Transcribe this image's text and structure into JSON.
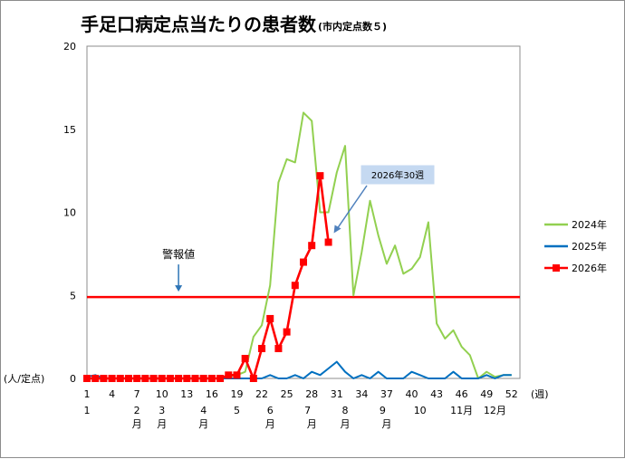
{
  "chart_data": {
    "type": "line",
    "title": "手足口病定点当たりの患者数",
    "subtitle": "(市内定点数５)",
    "ylabel": "(人/定点)",
    "xlabel": "(週)",
    "ylim": [
      0,
      20
    ],
    "yticks": [
      "0",
      "5",
      "10",
      "15",
      "20"
    ],
    "xlim": [
      1,
      53
    ],
    "xticks": [
      "1",
      "4",
      "7",
      "10",
      "13",
      "16",
      "19",
      "22",
      "25",
      "28",
      "31",
      "34",
      "37",
      "40",
      "43",
      "46",
      "49",
      "52"
    ],
    "month_labels": [
      {
        "week": 1,
        "text": "1"
      },
      {
        "week": 7,
        "text": "2"
      },
      {
        "week": 10,
        "text": "3"
      },
      {
        "week": 15,
        "text": "4"
      },
      {
        "week": 19,
        "text": "5"
      },
      {
        "week": 23,
        "text": "6"
      },
      {
        "week": 27.5,
        "text": "7"
      },
      {
        "week": 32,
        "text": "8"
      },
      {
        "week": 36.5,
        "text": "9"
      },
      {
        "week": 41,
        "text": "10"
      },
      {
        "week": 46,
        "text": "11月"
      },
      {
        "week": 50,
        "text": "12月"
      }
    ],
    "month_unit_labels": [
      {
        "week": 7,
        "text": "月"
      },
      {
        "week": 10,
        "text": "月"
      },
      {
        "week": 15,
        "text": "月"
      },
      {
        "week": 23,
        "text": "月"
      },
      {
        "week": 28,
        "text": "月"
      },
      {
        "week": 32,
        "text": "月"
      },
      {
        "week": 37,
        "text": "月"
      }
    ],
    "threshold": {
      "value": 4.9,
      "label": "警報値",
      "label_week": 12,
      "color": "#ff0000"
    },
    "callout": {
      "text": "2026年30週",
      "week": 30,
      "value": 8.2
    },
    "grid": false,
    "legend_position": "right",
    "series": [
      {
        "name": "2024年",
        "color": "#92d050",
        "marker": "none",
        "x": [
          1,
          2,
          3,
          4,
          5,
          6,
          7,
          8,
          9,
          10,
          11,
          12,
          13,
          14,
          15,
          16,
          17,
          18,
          19,
          20,
          21,
          22,
          23,
          24,
          25,
          26,
          27,
          28,
          29,
          30,
          31,
          32,
          33,
          34,
          35,
          36,
          37,
          38,
          39,
          40,
          41,
          42,
          43,
          44,
          45,
          46,
          47,
          48,
          49,
          50,
          51,
          52
        ],
        "values": [
          0,
          0,
          0,
          0,
          0,
          0,
          0,
          0,
          0,
          0,
          0,
          0,
          0,
          0,
          0,
          0,
          0,
          0.1,
          0.2,
          0.4,
          2.5,
          3.2,
          5.6,
          11.8,
          13.2,
          13.0,
          16.0,
          15.5,
          10.0,
          10.0,
          12.4,
          14.0,
          5.0,
          7.6,
          10.7,
          8.6,
          6.9,
          8.0,
          6.3,
          6.6,
          7.3,
          9.4,
          3.3,
          2.4,
          2.9,
          1.9,
          1.4,
          0,
          0.4,
          0.1,
          0.2,
          0.2
        ]
      },
      {
        "name": "2025年",
        "color": "#0070c0",
        "marker": "none",
        "x": [
          1,
          2,
          3,
          4,
          5,
          6,
          7,
          8,
          9,
          10,
          11,
          12,
          13,
          14,
          15,
          16,
          17,
          18,
          19,
          20,
          21,
          22,
          23,
          24,
          25,
          26,
          27,
          28,
          29,
          30,
          31,
          32,
          33,
          34,
          35,
          36,
          37,
          38,
          39,
          40,
          41,
          42,
          43,
          44,
          45,
          46,
          47,
          48,
          49,
          50,
          51,
          52
        ],
        "values": [
          0.1,
          0.2,
          0,
          0,
          0,
          0,
          0,
          0,
          0,
          0,
          0,
          0,
          0,
          0,
          0,
          0,
          0,
          0,
          0,
          0,
          0,
          0,
          0.2,
          0,
          0,
          0.2,
          0,
          0.4,
          0.2,
          0.6,
          1.0,
          0.4,
          0,
          0.2,
          0,
          0.4,
          0,
          0,
          0,
          0.4,
          0.2,
          0,
          0,
          0,
          0.4,
          0,
          0,
          0,
          0.2,
          0,
          0.2,
          0.2
        ]
      },
      {
        "name": "2026年",
        "color": "#ff0000",
        "marker": "square",
        "x": [
          1,
          2,
          3,
          4,
          5,
          6,
          7,
          8,
          9,
          10,
          11,
          12,
          13,
          14,
          15,
          16,
          17,
          18,
          19,
          20,
          21,
          22,
          23,
          24,
          25,
          26,
          27,
          28,
          29,
          30
        ],
        "values": [
          0,
          0,
          0,
          0,
          0,
          0,
          0,
          0,
          0,
          0,
          0,
          0,
          0,
          0,
          0,
          0,
          0,
          0.2,
          0.2,
          1.2,
          0,
          1.8,
          3.6,
          1.8,
          2.8,
          5.6,
          7.0,
          8.0,
          12.2,
          8.2
        ]
      }
    ]
  }
}
